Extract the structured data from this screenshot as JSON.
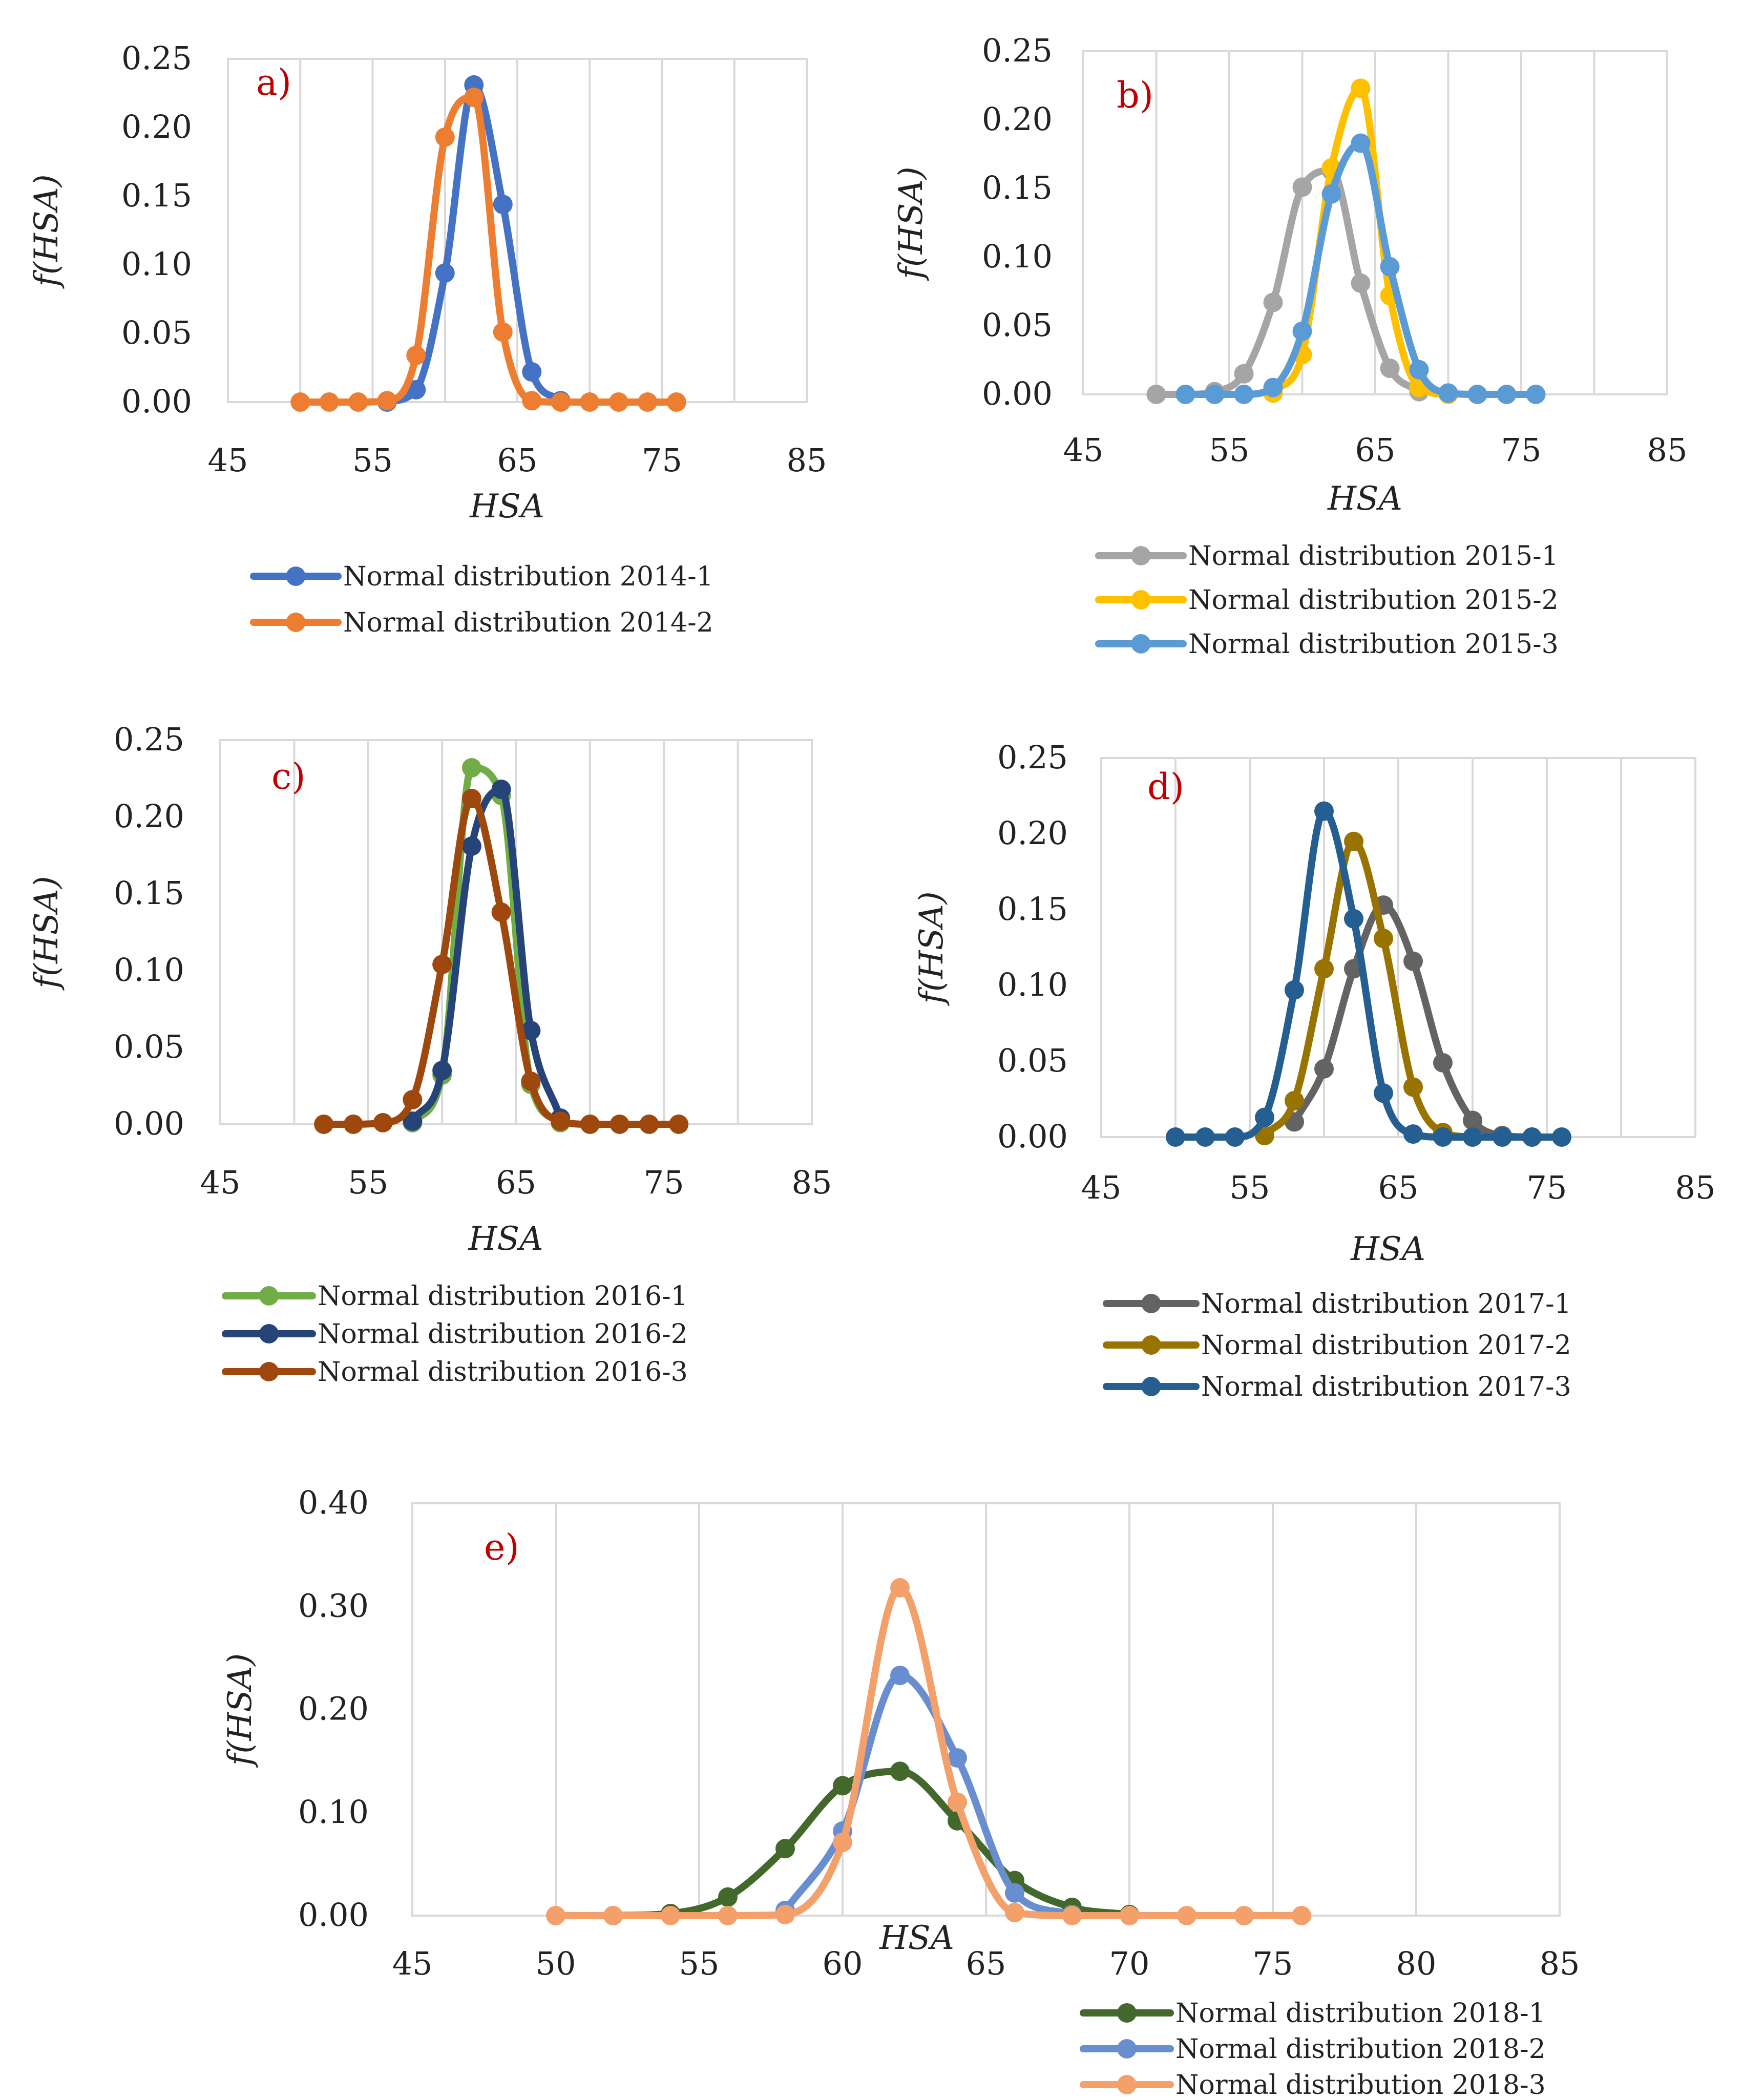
{
  "chart_data": [
    {
      "id": "a",
      "type": "line",
      "panel_label": "a)",
      "xlabel": "HSA",
      "ylabel": "f(HSA)",
      "xlim": [
        45,
        85
      ],
      "ylim": [
        0,
        0.25
      ],
      "xticks": [
        45,
        55,
        65,
        75,
        85
      ],
      "yticks": [
        0.0,
        0.05,
        0.1,
        0.15,
        0.2,
        0.25
      ],
      "ytick_labels": [
        "0.00",
        "0.05",
        "0.10",
        "0.15",
        "0.20",
        "0.25"
      ],
      "grid": "vertical",
      "legend": "bottom",
      "series": [
        {
          "name": "Normal distribution 2014-1",
          "color": "#4472c4",
          "x": [
            56,
            58,
            60,
            62,
            64,
            66,
            68
          ],
          "y": [
            0.0,
            0.009,
            0.094,
            0.231,
            0.144,
            0.022,
            0.001
          ]
        },
        {
          "name": "Normal distribution 2014-2",
          "color": "#ed7d31",
          "x": [
            50,
            52,
            54,
            56,
            58,
            60,
            62,
            64,
            66,
            68,
            70,
            72,
            74,
            76
          ],
          "y": [
            0.0,
            0.0,
            0.0,
            0.001,
            0.034,
            0.193,
            0.222,
            0.051,
            0.001,
            0.0,
            0.0,
            0.0,
            0.0,
            0.0
          ]
        }
      ]
    },
    {
      "id": "b",
      "type": "line",
      "panel_label": "b)",
      "xlabel": "HSA",
      "ylabel": "f(HSA)",
      "xlim": [
        45,
        85
      ],
      "ylim": [
        0,
        0.25
      ],
      "xticks": [
        45,
        55,
        65,
        75,
        85
      ],
      "yticks": [
        0.0,
        0.05,
        0.1,
        0.15,
        0.2,
        0.25
      ],
      "ytick_labels": [
        "0.00",
        "0.05",
        "0.10",
        "0.15",
        "0.20",
        "0.25"
      ],
      "grid": "vertical",
      "legend": "bottom",
      "series": [
        {
          "name": "Normal distribution 2015-1",
          "color": "#a5a5a5",
          "x": [
            50,
            52,
            54,
            56,
            58,
            60,
            62,
            64,
            66,
            68
          ],
          "y": [
            0.0,
            0.0,
            0.002,
            0.015,
            0.067,
            0.151,
            0.163,
            0.081,
            0.019,
            0.002
          ]
        },
        {
          "name": "Normal distribution 2015-2",
          "color": "#ffc000",
          "x": [
            58,
            60,
            62,
            64,
            66,
            68,
            70
          ],
          "y": [
            0.001,
            0.029,
            0.165,
            0.223,
            0.072,
            0.005,
            0.0
          ]
        },
        {
          "name": "Normal distribution 2015-3",
          "color": "#5b9bd5",
          "x": [
            52,
            54,
            56,
            58,
            60,
            62,
            64,
            66,
            68,
            70,
            72,
            74,
            76
          ],
          "y": [
            0.0,
            0.0,
            0.0,
            0.005,
            0.046,
            0.146,
            0.183,
            0.093,
            0.018,
            0.001,
            0.0,
            0.0,
            0.0
          ]
        }
      ]
    },
    {
      "id": "c",
      "type": "line",
      "panel_label": "c)",
      "xlabel": "HSA",
      "ylabel": "f(HSA)",
      "xlim": [
        45,
        85
      ],
      "ylim": [
        0,
        0.25
      ],
      "xticks": [
        45,
        55,
        65,
        75,
        85
      ],
      "yticks": [
        0.0,
        0.05,
        0.1,
        0.15,
        0.2,
        0.25
      ],
      "ytick_labels": [
        "0.00",
        "0.05",
        "0.10",
        "0.15",
        "0.20",
        "0.25"
      ],
      "grid": "vertical",
      "legend": "bottom",
      "series": [
        {
          "name": "Normal distribution 2016-1",
          "color": "#70ad47",
          "x": [
            58,
            60,
            62,
            64,
            66,
            68
          ],
          "y": [
            0.001,
            0.032,
            0.232,
            0.214,
            0.026,
            0.001
          ]
        },
        {
          "name": "Normal distribution 2016-2",
          "color": "#264478",
          "x": [
            58,
            60,
            62,
            64,
            66,
            68
          ],
          "y": [
            0.002,
            0.035,
            0.181,
            0.218,
            0.061,
            0.004
          ]
        },
        {
          "name": "Normal distribution 2016-3",
          "color": "#9e480e",
          "x": [
            52,
            54,
            56,
            58,
            60,
            62,
            64,
            66,
            68,
            70,
            72,
            74,
            76
          ],
          "y": [
            0.0,
            0.0,
            0.001,
            0.016,
            0.104,
            0.212,
            0.138,
            0.028,
            0.002,
            0.0,
            0.0,
            0.0,
            0.0
          ]
        }
      ]
    },
    {
      "id": "d",
      "type": "line",
      "panel_label": "d)",
      "xlabel": "HSA",
      "ylabel": "f(HSA)",
      "xlim": [
        45,
        85
      ],
      "ylim": [
        0,
        0.25
      ],
      "xticks": [
        45,
        55,
        65,
        75,
        85
      ],
      "yticks": [
        0.0,
        0.05,
        0.1,
        0.15,
        0.2,
        0.25
      ],
      "ytick_labels": [
        "0.00",
        "0.05",
        "0.10",
        "0.15",
        "0.20",
        "0.25"
      ],
      "grid": "vertical",
      "legend": "bottom",
      "series": [
        {
          "name": "Normal distribution 2017-1",
          "color": "#636363",
          "x": [
            58,
            60,
            62,
            64,
            66,
            68,
            70,
            72,
            74
          ],
          "y": [
            0.01,
            0.045,
            0.111,
            0.153,
            0.116,
            0.049,
            0.011,
            0.001,
            0.0
          ]
        },
        {
          "name": "Normal distribution 2017-2",
          "color": "#997300",
          "x": [
            56,
            58,
            60,
            62,
            64,
            66,
            68,
            70
          ],
          "y": [
            0.001,
            0.024,
            0.111,
            0.195,
            0.131,
            0.033,
            0.003,
            0.0
          ]
        },
        {
          "name": "Normal distribution 2017-3",
          "color": "#255e91",
          "x": [
            50,
            52,
            54,
            56,
            58,
            60,
            62,
            64,
            66,
            68,
            70,
            72,
            74,
            76
          ],
          "y": [
            0.0,
            0.0,
            0.0,
            0.013,
            0.097,
            0.215,
            0.144,
            0.029,
            0.002,
            0.0,
            0.0,
            0.0,
            0.0,
            0.0
          ]
        }
      ]
    },
    {
      "id": "e",
      "type": "line",
      "panel_label": "e)",
      "xlabel": "HSA",
      "ylabel": "f(HSA)",
      "xlim": [
        45,
        85
      ],
      "ylim": [
        0,
        0.4
      ],
      "xticks": [
        45,
        50,
        55,
        60,
        65,
        70,
        75,
        80,
        85
      ],
      "yticks": [
        0.0,
        0.1,
        0.2,
        0.3,
        0.4
      ],
      "ytick_labels": [
        "0.00",
        "0.10",
        "0.20",
        "0.30",
        "0.40"
      ],
      "grid": "vertical",
      "legend": "bottom-right",
      "series": [
        {
          "name": "Normal distribution 2018-1",
          "color": "#43682b",
          "x": [
            52,
            54,
            56,
            58,
            60,
            62,
            64,
            66,
            68,
            70
          ],
          "y": [
            0.0,
            0.002,
            0.018,
            0.065,
            0.126,
            0.14,
            0.092,
            0.034,
            0.008,
            0.001
          ]
        },
        {
          "name": "Normal distribution 2018-2",
          "color": "#698ed0",
          "x": [
            58,
            60,
            62,
            64,
            66,
            68
          ],
          "y": [
            0.005,
            0.082,
            0.233,
            0.153,
            0.022,
            0.001
          ]
        },
        {
          "name": "Normal distribution 2018-3",
          "color": "#f4a06b",
          "x": [
            50,
            52,
            54,
            56,
            58,
            60,
            62,
            64,
            66,
            68,
            70,
            72,
            74,
            76
          ],
          "y": [
            0.0,
            0.0,
            0.0,
            0.0,
            0.001,
            0.071,
            0.318,
            0.11,
            0.003,
            0.0,
            0.0,
            0.0,
            0.0,
            0.0
          ]
        }
      ]
    }
  ]
}
